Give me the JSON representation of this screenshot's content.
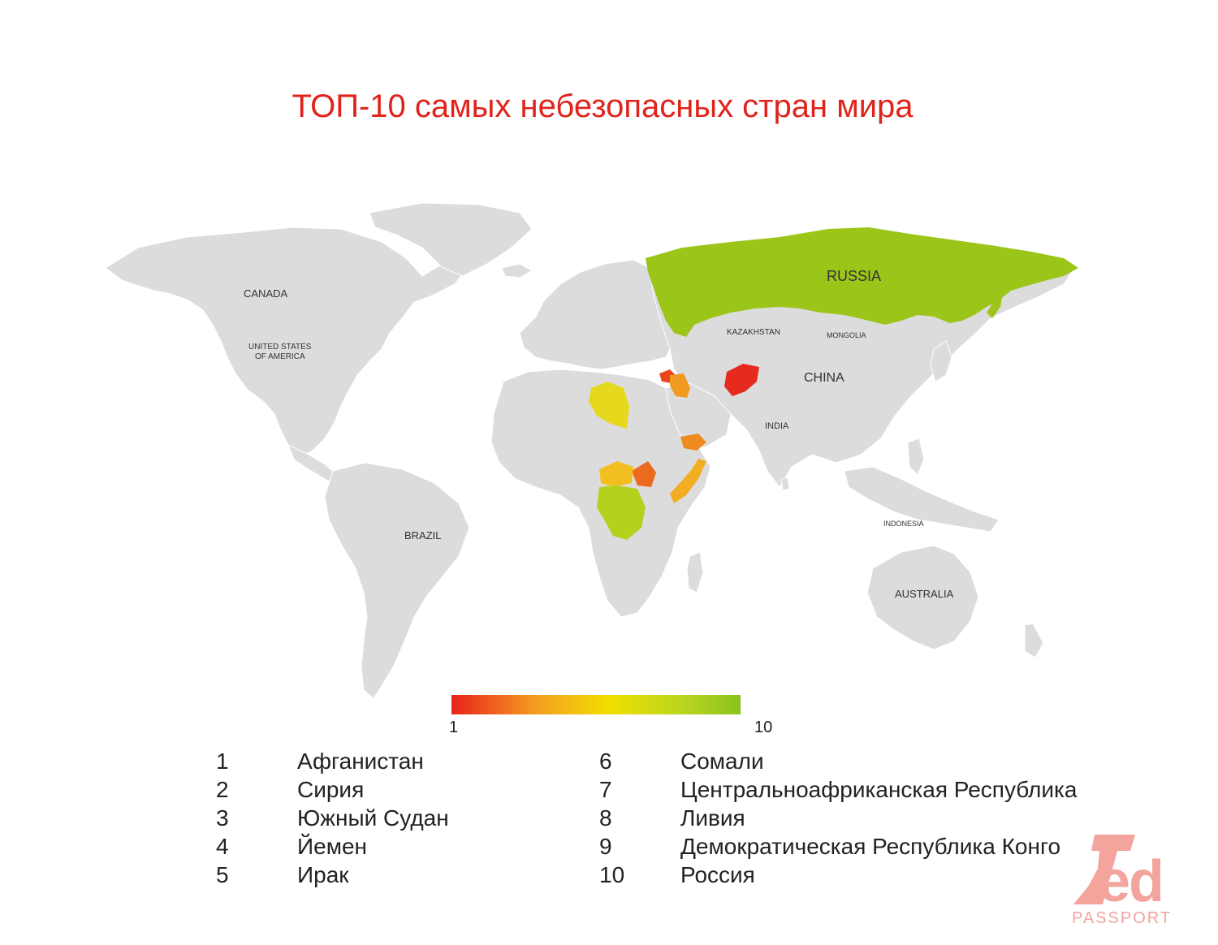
{
  "title": "ТОП-10 самых небезопасных стран мира",
  "map": {
    "base_color": "#dcdcdc",
    "country_labels": {
      "canada": "CANADA",
      "usa_line1": "UNITED STATES",
      "usa_line2": "OF AMERICA",
      "brazil": "BRAZIL",
      "russia": "RUSSIA",
      "china": "CHINA",
      "kazakhstan": "KAZAKHSTAN",
      "mongolia": "MONGOLIA",
      "india": "INDIA",
      "australia": "AUSTRALIA",
      "indonesia": "INDONESIA"
    },
    "highlighted": [
      {
        "rank": 1,
        "country": "Afghanistan",
        "color": "#e62a1e"
      },
      {
        "rank": 2,
        "country": "Syria",
        "color": "#e8451c"
      },
      {
        "rank": 3,
        "country": "South Sudan",
        "color": "#ec6a1e"
      },
      {
        "rank": 4,
        "country": "Yemen",
        "color": "#ef8a20"
      },
      {
        "rank": 5,
        "country": "Iraq",
        "color": "#f09a22"
      },
      {
        "rank": 6,
        "country": "Somalia",
        "color": "#f2ae22"
      },
      {
        "rank": 7,
        "country": "Central African Republic",
        "color": "#f3bf20"
      },
      {
        "rank": 8,
        "country": "Libya",
        "color": "#e6d81c"
      },
      {
        "rank": 9,
        "country": "DR Congo",
        "color": "#b4d11e"
      },
      {
        "rank": 10,
        "country": "Russia",
        "color": "#9cc51a"
      }
    ]
  },
  "legend": {
    "min_label": "1",
    "max_label": "10",
    "colors": [
      "#e8231b",
      "#f4a020",
      "#f1e000",
      "#b8d620",
      "#8cc21e"
    ]
  },
  "ranking": [
    {
      "rank": "1",
      "name": "Афганистан"
    },
    {
      "rank": "2",
      "name": "Сирия"
    },
    {
      "rank": "3",
      "name": "Южный Судан"
    },
    {
      "rank": "4",
      "name": "Йемен"
    },
    {
      "rank": "5",
      "name": "Ирак"
    },
    {
      "rank": "6",
      "name": "Сомали"
    },
    {
      "rank": "7",
      "name": "Центральноафриканская Республика"
    },
    {
      "rank": "8",
      "name": "Ливия"
    },
    {
      "rank": "9",
      "name": "Демократическая Республика Конго"
    },
    {
      "rank": "10",
      "name": "Россия"
    }
  ],
  "logo": {
    "word": "Red",
    "sub": "PASSPORT",
    "color": "#f2a49d"
  }
}
